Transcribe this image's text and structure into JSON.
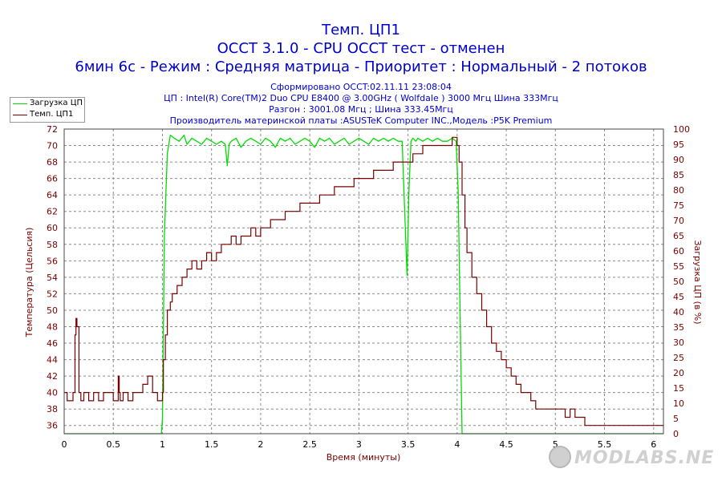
{
  "titles": {
    "line1": "Темп. ЦП1",
    "line2": "OCCT 3.1.0 - CPU OCCT тест - отменен",
    "line3": "6мин 6с - Режим : Средняя матрица - Приоритет : Нормальный - 2 потоков"
  },
  "subtitles": {
    "line1": "Сформировано OCCT:02.11.11 23:08:04",
    "line2": "ЦП : Intel(R) Core(TM)2 Duo CPU E8400 @ 3.00GHz ( Wolfdale ) 3000 Мгц Шина 333Мгц",
    "line3": "Разгон : 3001.08 Мгц ; Шина 333.45Мгц",
    "line4": "Производитель материнской платы :ASUSTeK Computer INC.,Модель :P5K Premium"
  },
  "watermark": "MODLABS.NET",
  "chart_data": {
    "type": "line",
    "title": "Темп. ЦП1",
    "xlabel": "Время (минуты)",
    "ylabel": "Температура (Цельсия)",
    "y2label": "Загрузка ЦП (в %)",
    "xlim": [
      0,
      6.1
    ],
    "ylim": [
      35,
      72
    ],
    "y2lim": [
      0,
      100
    ],
    "x_ticks": [
      "0",
      "0.5",
      "1",
      "1.5",
      "2",
      "2.5",
      "3",
      "3.5",
      "4",
      "4.5",
      "5",
      "5.5",
      "6"
    ],
    "y_ticks": [
      "36",
      "38",
      "40",
      "42",
      "44",
      "46",
      "48",
      "50",
      "52",
      "54",
      "56",
      "58",
      "60",
      "62",
      "64",
      "66",
      "68",
      "70",
      "72"
    ],
    "y2_ticks": [
      "0",
      "5",
      "10",
      "15",
      "20",
      "25",
      "30",
      "35",
      "40",
      "45",
      "50",
      "55",
      "60",
      "65",
      "70",
      "75",
      "80",
      "85",
      "90",
      "95",
      "100"
    ],
    "grid": true,
    "legend_position": "top-left",
    "colors": {
      "load": "#00dd00",
      "temp": "#7a0000",
      "axis_text": "#7a0000",
      "title": "#0000cc"
    },
    "series": [
      {
        "name": "Загрузка ЦП",
        "axis": "right",
        "x": [
          0,
          0.99,
          1.0,
          1.02,
          1.05,
          1.08,
          1.12,
          1.17,
          1.22,
          1.25,
          1.3,
          1.35,
          1.4,
          1.45,
          1.5,
          1.55,
          1.6,
          1.64,
          1.66,
          1.68,
          1.7,
          1.75,
          1.8,
          1.85,
          1.9,
          1.95,
          2.0,
          2.05,
          2.1,
          2.15,
          2.2,
          2.25,
          2.3,
          2.35,
          2.4,
          2.45,
          2.5,
          2.55,
          2.6,
          2.65,
          2.7,
          2.75,
          2.8,
          2.85,
          2.9,
          2.95,
          3.0,
          3.05,
          3.1,
          3.15,
          3.2,
          3.25,
          3.3,
          3.35,
          3.4,
          3.44,
          3.47,
          3.49,
          3.51,
          3.53,
          3.55,
          3.58,
          3.6,
          3.65,
          3.7,
          3.75,
          3.8,
          3.85,
          3.9,
          3.95,
          3.99,
          4.01,
          4.03,
          4.05,
          6.1
        ],
        "values": [
          0,
          0,
          5,
          65,
          92,
          98,
          97,
          96,
          98,
          95,
          97,
          96,
          95,
          97,
          96,
          95,
          96,
          95,
          88,
          95,
          96,
          97,
          94,
          96,
          97,
          96,
          95,
          97,
          96,
          94,
          97,
          96,
          97,
          95,
          96,
          97,
          96,
          94,
          97,
          96,
          97,
          95,
          96,
          97,
          95,
          96,
          97,
          96,
          95,
          97,
          96,
          97,
          96,
          97,
          96,
          96,
          70,
          52,
          80,
          96,
          97,
          96,
          97,
          96,
          97,
          96,
          97,
          96,
          96,
          97,
          96,
          80,
          40,
          0,
          0
        ]
      },
      {
        "name": "Темп. ЦП1",
        "axis": "left",
        "x": [
          0,
          0.03,
          0.06,
          0.09,
          0.11,
          0.12,
          0.13,
          0.15,
          0.17,
          0.2,
          0.25,
          0.3,
          0.35,
          0.4,
          0.45,
          0.5,
          0.55,
          0.56,
          0.57,
          0.6,
          0.65,
          0.7,
          0.75,
          0.8,
          0.85,
          0.9,
          0.95,
          1.0,
          1.01,
          1.03,
          1.05,
          1.08,
          1.1,
          1.15,
          1.2,
          1.25,
          1.3,
          1.35,
          1.4,
          1.45,
          1.5,
          1.55,
          1.6,
          1.65,
          1.7,
          1.75,
          1.8,
          1.85,
          1.9,
          1.95,
          2.0,
          2.05,
          2.1,
          2.15,
          2.2,
          2.25,
          2.3,
          2.35,
          2.4,
          2.45,
          2.5,
          2.55,
          2.6,
          2.65,
          2.7,
          2.75,
          2.8,
          2.85,
          2.9,
          2.95,
          3.0,
          3.05,
          3.1,
          3.15,
          3.2,
          3.25,
          3.3,
          3.35,
          3.4,
          3.45,
          3.5,
          3.55,
          3.6,
          3.65,
          3.7,
          3.75,
          3.8,
          3.85,
          3.9,
          3.95,
          4.0,
          4.02,
          4.05,
          4.08,
          4.1,
          4.15,
          4.2,
          4.25,
          4.3,
          4.35,
          4.4,
          4.45,
          4.5,
          4.55,
          4.6,
          4.65,
          4.7,
          4.75,
          4.8,
          4.85,
          4.9,
          4.95,
          5.0,
          5.05,
          5.1,
          5.15,
          5.2,
          5.3,
          5.4,
          5.5,
          5.6,
          5.7,
          5.8,
          5.9,
          6.0,
          6.1
        ],
        "values": [
          40,
          39,
          39,
          40,
          47,
          49,
          48,
          40,
          39,
          40,
          39,
          40,
          39,
          40,
          40,
          39,
          42,
          40,
          39,
          40,
          39,
          40,
          40,
          41,
          42,
          40,
          39,
          40,
          44,
          47,
          50,
          51,
          52,
          53,
          54,
          55,
          56,
          55,
          56,
          57,
          56,
          57,
          58,
          58,
          59,
          58,
          59,
          59,
          60,
          59,
          60,
          60,
          61,
          61,
          61,
          62,
          62,
          62,
          63,
          63,
          63,
          63,
          64,
          64,
          64,
          65,
          65,
          65,
          65,
          66,
          66,
          66,
          66,
          67,
          67,
          67,
          67,
          68,
          68,
          68,
          68,
          69,
          69,
          70,
          70,
          70,
          70,
          70,
          70,
          71,
          70,
          68,
          64,
          60,
          57,
          54,
          52,
          50,
          48,
          46,
          45,
          44,
          43,
          42,
          41,
          40,
          40,
          39,
          38,
          38,
          38,
          38,
          38,
          38,
          37,
          38,
          37,
          36,
          36,
          36,
          36,
          36,
          36,
          36,
          36,
          36
        ]
      }
    ]
  }
}
